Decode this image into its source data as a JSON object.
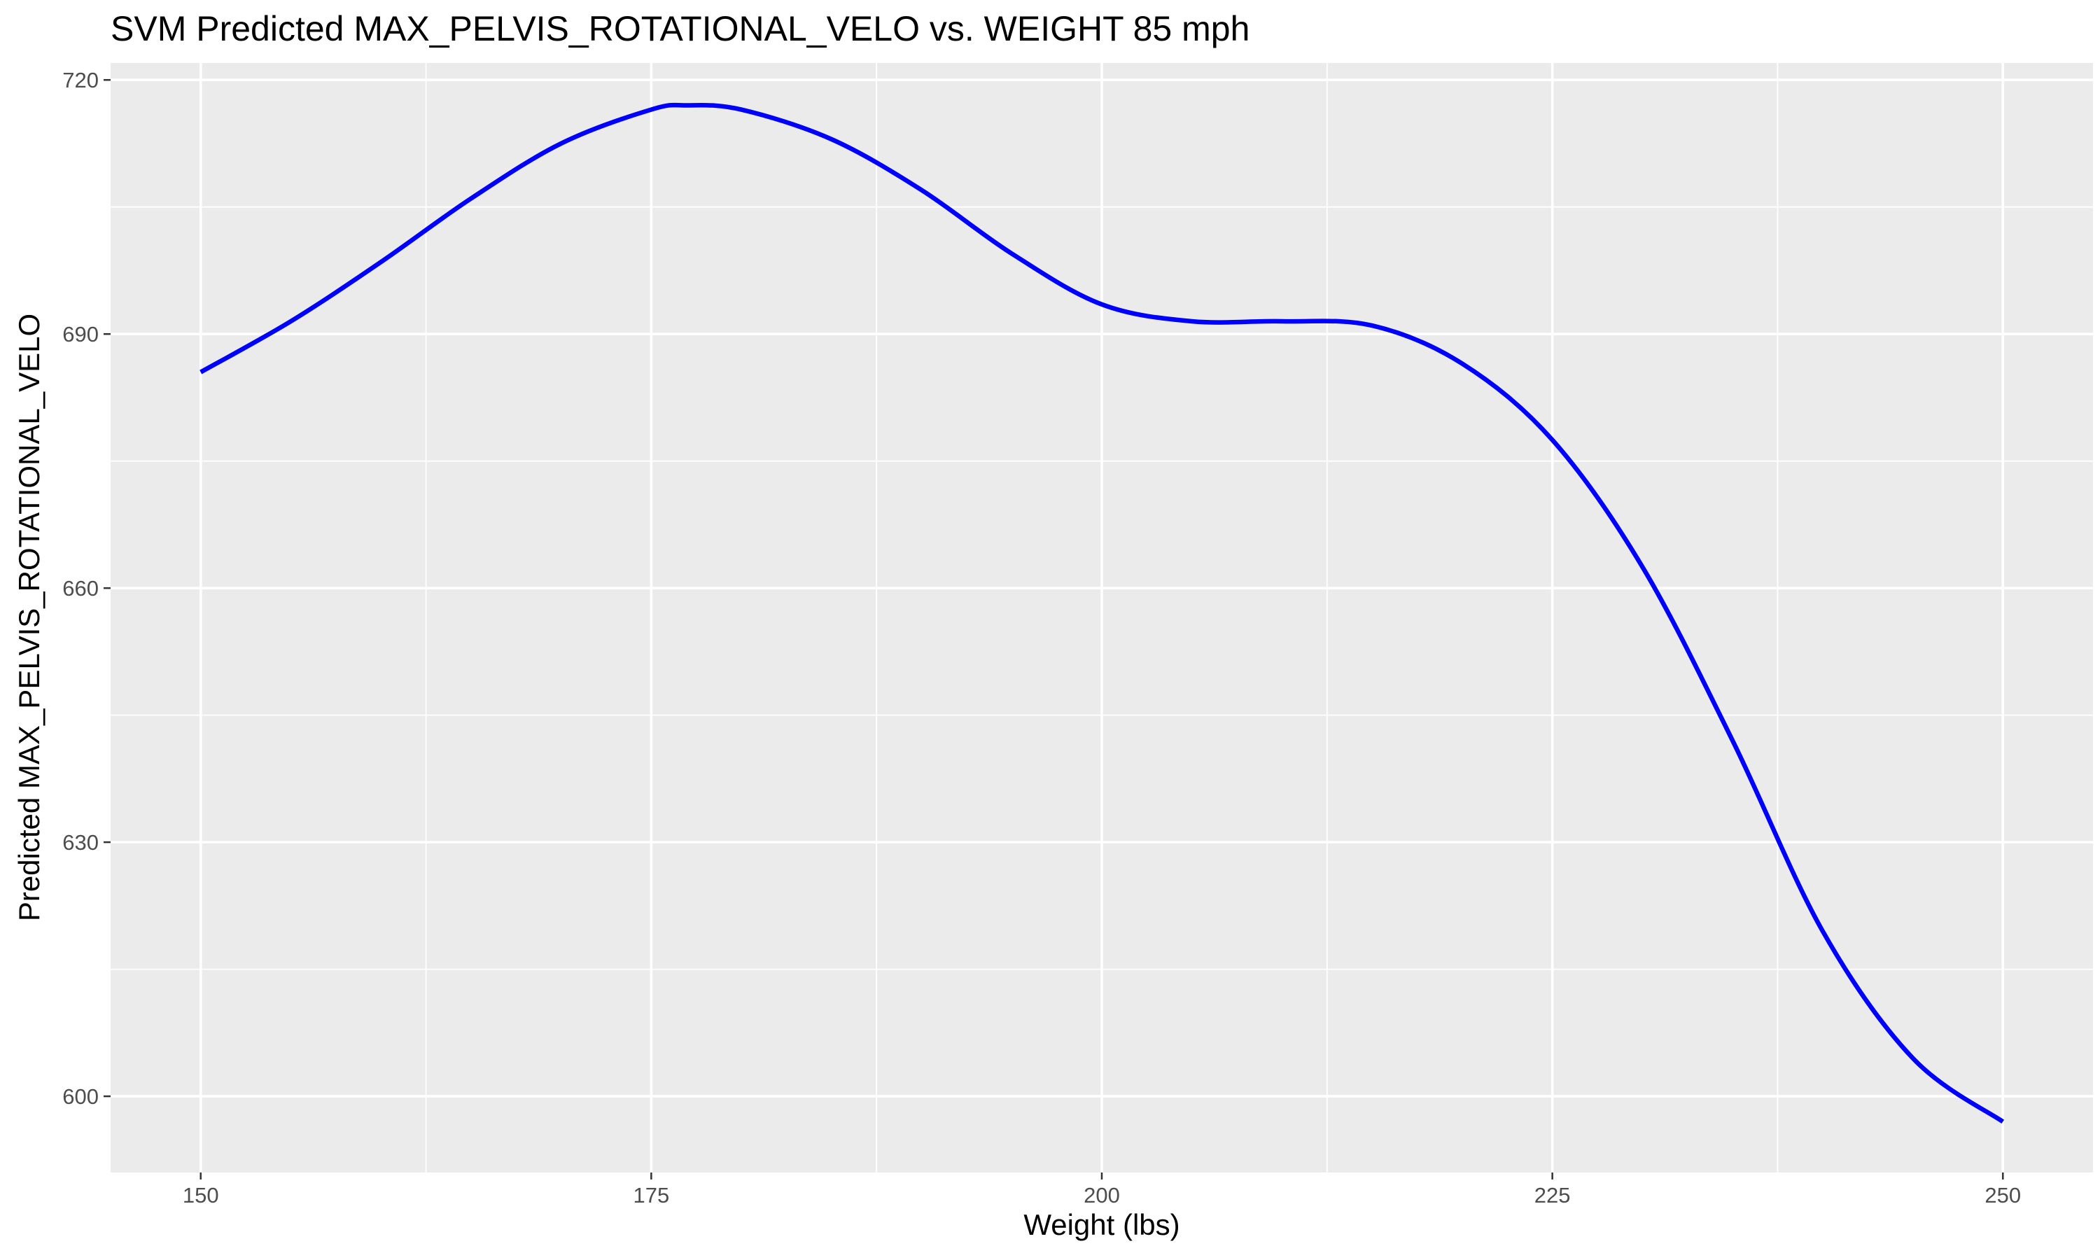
{
  "chart_data": {
    "type": "line",
    "title": "SVM Predicted MAX_PELVIS_ROTATIONAL_VELO vs. WEIGHT 85 mph",
    "xlabel": "Weight (lbs)",
    "ylabel": "Predicted MAX_PELVIS_ROTATIONAL_VELO",
    "xlim": [
      145,
      255
    ],
    "ylim": [
      591,
      722
    ],
    "x_ticks": [
      150,
      175,
      200,
      225,
      250
    ],
    "y_ticks": [
      600,
      630,
      660,
      690,
      720
    ],
    "x_tick_labels": [
      "150",
      "175",
      "200",
      "225",
      "250"
    ],
    "y_tick_labels": [
      "600",
      "630",
      "660",
      "690",
      "720"
    ],
    "grid": true,
    "series": [
      {
        "color": "#0000ff",
        "x": [
          150,
          155,
          160,
          165,
          170,
          175,
          177,
          180,
          185,
          190,
          195,
          200,
          205,
          210,
          215,
          220,
          225,
          230,
          235,
          240,
          245,
          250
        ],
        "y": [
          685.5,
          691.5,
          698.5,
          706.0,
          712.5,
          716.5,
          717.0,
          716.5,
          713.0,
          707.0,
          699.5,
          693.5,
          691.5,
          691.5,
          691.0,
          686.5,
          677.5,
          662.5,
          642.0,
          619.5,
          604.5,
          597.0
        ]
      }
    ]
  }
}
